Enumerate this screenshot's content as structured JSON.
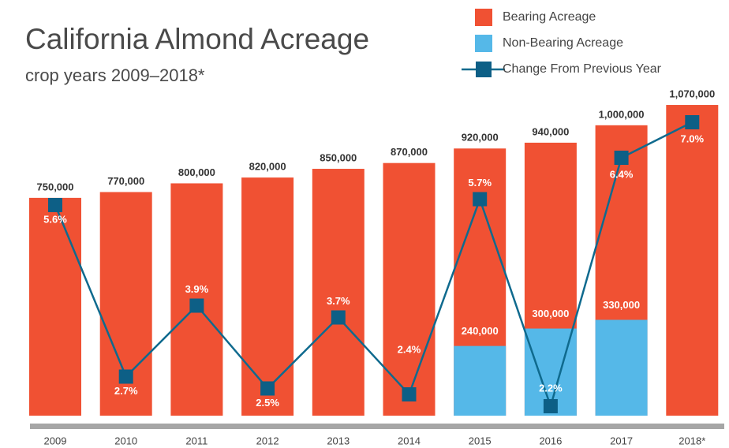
{
  "chart_data": {
    "type": "bar",
    "title": "California Almond Acreage",
    "subtitle": "crop years 2009–2018*",
    "categories": [
      "2009",
      "2010",
      "2011",
      "2012",
      "2013",
      "2014",
      "2015",
      "2016",
      "2017",
      "2018*"
    ],
    "series": [
      {
        "name": "Bearing Acreage",
        "color": "#f05133",
        "values": [
          750000,
          770000,
          800000,
          820000,
          850000,
          870000,
          920000,
          940000,
          1000000,
          1070000
        ],
        "value_labels": [
          "750,000",
          "770,000",
          "800,000",
          "820,000",
          "850,000",
          "870,000",
          "920,000",
          "940,000",
          "1,000,000",
          "1,070,000"
        ]
      },
      {
        "name": "Non-Bearing Acreage",
        "color": "#55b8e8",
        "values": [
          null,
          null,
          null,
          null,
          null,
          null,
          240000,
          300000,
          330000,
          null
        ],
        "value_labels": [
          null,
          null,
          null,
          null,
          null,
          null,
          "240,000",
          "300,000",
          "330,000",
          null
        ]
      },
      {
        "name": "Change From Previous Year",
        "color": "#0f6a8e",
        "type": "line",
        "axis": "y2",
        "values": [
          5.6,
          2.7,
          3.9,
          2.5,
          3.7,
          2.4,
          5.7,
          2.2,
          6.4,
          7.0
        ],
        "value_labels": [
          "5.6%",
          "2.7%",
          "3.9%",
          "2.5%",
          "3.7%",
          "2.4%",
          "5.7%",
          "2.2%",
          "6.4%",
          "7.0%"
        ]
      }
    ],
    "ylim": [
      0,
      1100000
    ],
    "y2lim": [
      1.5,
      7.5
    ],
    "legend": "top-right"
  }
}
